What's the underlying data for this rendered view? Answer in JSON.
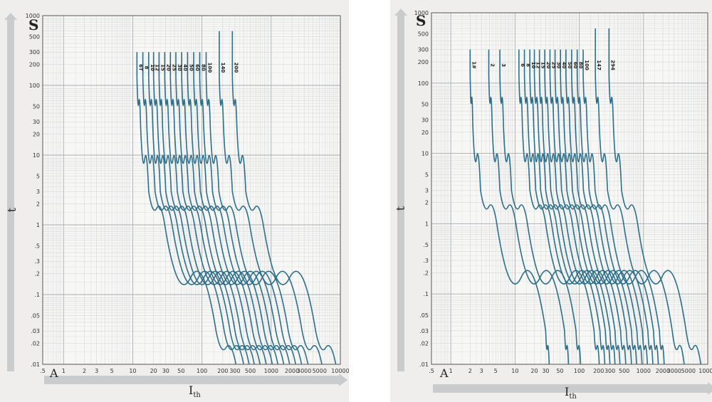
{
  "chart_data": [
    {
      "type": "line",
      "x_scale": "log",
      "y_scale": "log",
      "xlim": [
        0.5,
        10000
      ],
      "ylim": [
        0.01,
        1000
      ],
      "y_unit": "S",
      "ylabel": "t",
      "x_unit": "A",
      "xlabel": "I",
      "xlabel_sub": "th",
      "grid": true,
      "y_ticks": [
        "1000",
        "500",
        "300",
        "200",
        "100",
        "50",
        "30",
        "20",
        "10",
        "5",
        "3",
        "2",
        "1",
        ".5",
        ".3",
        ".2",
        ".1",
        ".05",
        ".03",
        ".02",
        ".01"
      ],
      "x_ticks": [
        ".5",
        "1",
        "2",
        "3",
        "5",
        "10",
        "20",
        "30",
        "50",
        "100",
        "200",
        "300",
        "500",
        "1000",
        "2000",
        "3000",
        "5000",
        "10000"
      ],
      "series": [
        {
          "name": "6T",
          "x": [
            11.5,
            13,
            17,
            29,
            160,
            310
          ],
          "y": [
            130,
            25,
            3,
            1,
            0.03,
            0.01
          ]
        },
        {
          "name": "8",
          "x": [
            14,
            16,
            21,
            37,
            210,
            400
          ],
          "y": [
            130,
            25,
            3,
            1,
            0.03,
            0.01
          ]
        },
        {
          "name": "10",
          "x": [
            17,
            19.5,
            25,
            44,
            255,
            480
          ],
          "y": [
            130,
            25,
            3,
            1,
            0.03,
            0.01
          ]
        },
        {
          "name": "12",
          "x": [
            20,
            23,
            30,
            52,
            300,
            570
          ],
          "y": [
            130,
            25,
            3,
            1,
            0.03,
            0.01
          ]
        },
        {
          "name": "15",
          "x": [
            24,
            27,
            36,
            63,
            360,
            690
          ],
          "y": [
            130,
            25,
            3,
            1,
            0.03,
            0.01
          ]
        },
        {
          "name": "20",
          "x": [
            29,
            33,
            44,
            78,
            440,
            850
          ],
          "y": [
            130,
            25,
            3,
            1,
            0.03,
            0.01
          ]
        },
        {
          "name": "25",
          "x": [
            35,
            40,
            53,
            95,
            540,
            1040
          ],
          "y": [
            130,
            25,
            3,
            1,
            0.03,
            0.01
          ]
        },
        {
          "name": "30",
          "x": [
            42,
            48,
            64,
            113,
            650,
            1250
          ],
          "y": [
            130,
            25,
            3,
            1,
            0.03,
            0.01
          ]
        },
        {
          "name": "40",
          "x": [
            51,
            58,
            78,
            138,
            790,
            1520
          ],
          "y": [
            130,
            25,
            3,
            1,
            0.03,
            0.01
          ]
        },
        {
          "name": "50",
          "x": [
            62,
            71,
            95,
            168,
            960,
            1850
          ],
          "y": [
            130,
            25,
            3,
            1,
            0.03,
            0.01
          ]
        },
        {
          "name": "60",
          "x": [
            76,
            87,
            116,
            205,
            1170,
            2260
          ],
          "y": [
            130,
            25,
            3,
            1,
            0.03,
            0.01
          ]
        },
        {
          "name": "80",
          "x": [
            93,
            106,
            142,
            250,
            1430,
            2750
          ],
          "y": [
            130,
            25,
            3,
            1,
            0.03,
            0.01
          ]
        },
        {
          "name": "100",
          "x": [
            115,
            132,
            176,
            310,
            1770,
            3400
          ],
          "y": [
            130,
            25,
            3,
            1,
            0.03,
            0.01
          ]
        },
        {
          "name": "140",
          "x": [
            178,
            205,
            275,
            490,
            2800,
            5400
          ],
          "y": [
            130,
            25,
            3,
            1,
            0.03,
            0.01
          ]
        },
        {
          "name": "200",
          "x": [
            275,
            320,
            430,
            770,
            4400,
            8600
          ],
          "y": [
            130,
            25,
            3,
            1,
            0.03,
            0.01
          ]
        }
      ]
    },
    {
      "type": "line",
      "x_scale": "log",
      "y_scale": "log",
      "xlim": [
        0.5,
        10000
      ],
      "ylim": [
        0.01,
        1000
      ],
      "y_unit": "S",
      "ylabel": "t",
      "x_unit": "A",
      "xlabel": "I",
      "xlabel_sub": "th",
      "grid": true,
      "y_ticks": [
        "1000",
        "500",
        "300",
        "200",
        "100",
        "50",
        "30",
        "20",
        "10",
        "5",
        "3",
        "2",
        "1",
        ".5",
        ".3",
        ".2",
        ".1",
        ".05",
        ".03",
        ".02",
        ".01"
      ],
      "x_ticks": [
        ".5",
        "1",
        "2",
        "3",
        "5",
        "10",
        "20",
        "30",
        "50",
        "100",
        "200",
        "300",
        "500",
        "1000",
        "2000",
        "3000",
        "5000",
        "10000"
      ],
      "series": [
        {
          "name": "1#",
          "x": [
            2,
            2.2,
            2.9,
            5.2,
            30,
            34
          ],
          "y": [
            130,
            25,
            3,
            1,
            0.03,
            0.01
          ]
        },
        {
          "name": "2",
          "x": [
            3.9,
            4.4,
            5.8,
            10.3,
            59,
            68
          ],
          "y": [
            130,
            25,
            3,
            1,
            0.03,
            0.01
          ]
        },
        {
          "name": "3",
          "x": [
            5.8,
            6.6,
            8.8,
            15.6,
            89,
            105
          ],
          "y": [
            130,
            25,
            3,
            1,
            0.03,
            0.01
          ]
        },
        {
          "name": "6",
          "x": [
            11.5,
            13,
            17,
            30,
            170,
            205
          ],
          "y": [
            130,
            25,
            3,
            1,
            0.03,
            0.01
          ]
        },
        {
          "name": "8",
          "x": [
            14,
            16,
            21,
            37,
            210,
            250
          ],
          "y": [
            130,
            25,
            3,
            1,
            0.03,
            0.01
          ]
        },
        {
          "name": "10",
          "x": [
            17,
            19.5,
            25,
            44,
            255,
            300
          ],
          "y": [
            130,
            25,
            3,
            1,
            0.03,
            0.01
          ]
        },
        {
          "name": "12",
          "x": [
            20,
            23,
            30,
            52,
            300,
            360
          ],
          "y": [
            130,
            25,
            3,
            1,
            0.03,
            0.01
          ]
        },
        {
          "name": "15",
          "x": [
            24,
            27,
            36,
            63,
            360,
            430
          ],
          "y": [
            130,
            25,
            3,
            1,
            0.03,
            0.01
          ]
        },
        {
          "name": "20",
          "x": [
            29,
            33,
            44,
            78,
            440,
            530
          ],
          "y": [
            130,
            25,
            3,
            1,
            0.03,
            0.01
          ]
        },
        {
          "name": "25",
          "x": [
            35,
            40,
            53,
            95,
            540,
            650
          ],
          "y": [
            130,
            25,
            3,
            1,
            0.03,
            0.01
          ]
        },
        {
          "name": "30",
          "x": [
            42,
            48,
            64,
            113,
            650,
            780
          ],
          "y": [
            130,
            25,
            3,
            1,
            0.03,
            0.01
          ]
        },
        {
          "name": "40",
          "x": [
            51,
            58,
            78,
            138,
            790,
            950
          ],
          "y": [
            130,
            25,
            3,
            1,
            0.03,
            0.01
          ]
        },
        {
          "name": "50",
          "x": [
            62,
            71,
            95,
            168,
            960,
            1150
          ],
          "y": [
            130,
            25,
            3,
            1,
            0.03,
            0.01
          ]
        },
        {
          "name": "60",
          "x": [
            76,
            87,
            116,
            205,
            1170,
            1400
          ],
          "y": [
            130,
            25,
            3,
            1,
            0.03,
            0.01
          ]
        },
        {
          "name": "80",
          "x": [
            93,
            106,
            142,
            250,
            1430,
            1700
          ],
          "y": [
            130,
            25,
            3,
            1,
            0.03,
            0.01
          ]
        },
        {
          "name": "100",
          "x": [
            115,
            132,
            176,
            310,
            1770,
            2100
          ],
          "y": [
            130,
            25,
            3,
            1,
            0.03,
            0.01
          ]
        },
        {
          "name": "147",
          "x": [
            178,
            205,
            275,
            490,
            2800,
            4300
          ],
          "y": [
            130,
            25,
            3,
            1,
            0.03,
            0.01
          ]
        },
        {
          "name": "294",
          "x": [
            290,
            340,
            455,
            810,
            4600,
            7800
          ],
          "y": [
            130,
            25,
            3,
            1,
            0.03,
            0.01
          ]
        }
      ]
    }
  ],
  "colors": {
    "curve": "#2d6f8a",
    "grid_minor": "#cfd2d4",
    "grid_major": "#a9adb1",
    "paper": "#f7f7f5",
    "arrow": "#c9cbcd"
  }
}
